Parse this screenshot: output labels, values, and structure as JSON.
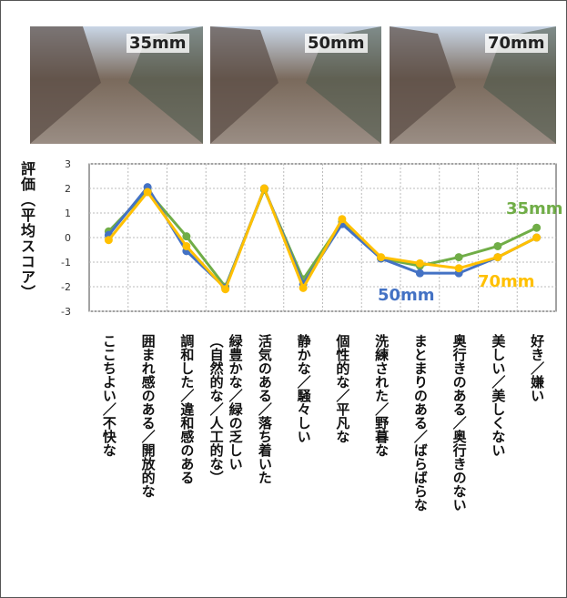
{
  "photos": [
    {
      "label": "35mm"
    },
    {
      "label": "50mm"
    },
    {
      "label": "70mm"
    }
  ],
  "chart_data": {
    "type": "line",
    "y_label": "評価（平均スコア）",
    "categories": [
      "ここちよい／不快な",
      "囲まれ感のある／開放的な",
      "調和した／違和感のある",
      "緑豊かな／緑の乏しい\n（自然的な／人工的な）",
      "活気のある／落ち着いた",
      "静かな／騒々しい",
      "個性的な／平凡な",
      "洗練された／野暮な",
      "まとまりのある／ばらばらな",
      "奥行きのある／奥行きのない",
      "美しい／美しくない",
      "好き／嫌い"
    ],
    "series": [
      {
        "name": "35mm",
        "color": "#70ad47",
        "values": [
          0.25,
          1.9,
          0.05,
          -2.0,
          1.95,
          -1.7,
          0.65,
          -0.85,
          -1.15,
          -0.8,
          -0.35,
          0.4
        ]
      },
      {
        "name": "50mm",
        "color": "#4472c4",
        "values": [
          0.1,
          2.05,
          -0.55,
          -2.05,
          2.0,
          -1.9,
          0.55,
          -0.85,
          -1.45,
          -1.45,
          -0.8,
          0.0
        ]
      },
      {
        "name": "70mm",
        "color": "#ffc000",
        "values": [
          -0.1,
          1.85,
          -0.35,
          -2.1,
          2.0,
          -2.05,
          0.75,
          -0.8,
          -1.05,
          -1.25,
          -0.8,
          0.0
        ]
      }
    ],
    "ylim": [
      -3,
      3
    ],
    "yticks": [
      -3,
      -2,
      -1,
      0,
      1,
      2,
      3
    ],
    "grid": true
  }
}
